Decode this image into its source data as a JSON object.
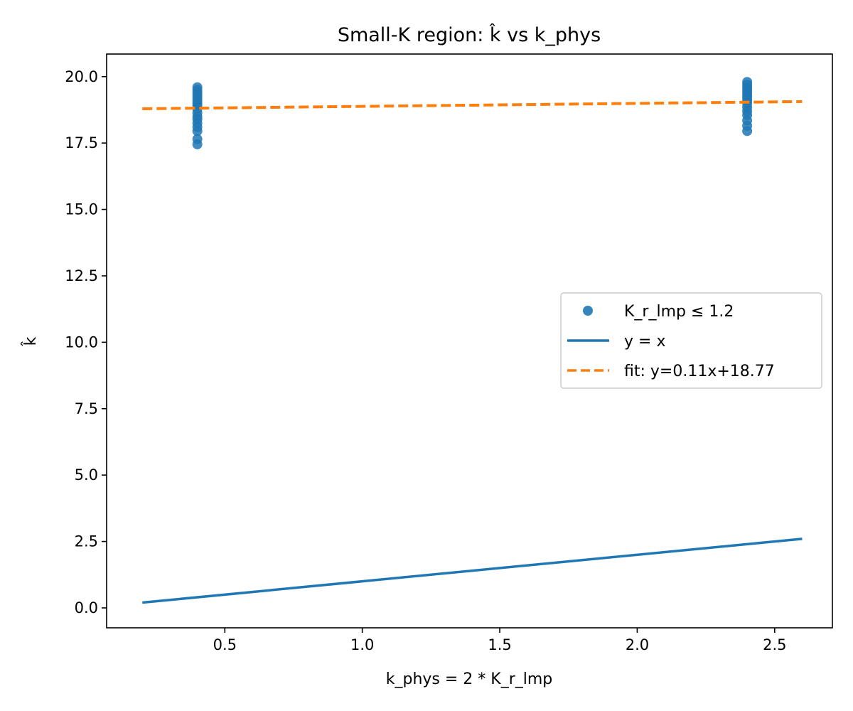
{
  "chart_data": {
    "type": "scatter",
    "title": "Small-K region: k̂ vs k_phys",
    "xlabel": "k_phys = 2 * K_r_lmp",
    "ylabel": "k̂",
    "xlim": [
      0.07,
      2.71
    ],
    "ylim": [
      -0.75,
      20.85
    ],
    "xticks": [
      0.5,
      1.0,
      1.5,
      2.0,
      2.5
    ],
    "yticks": [
      0.0,
      2.5,
      5.0,
      7.5,
      10.0,
      12.5,
      15.0,
      17.5,
      20.0
    ],
    "grid": false,
    "legend_position": "center-right",
    "series": [
      {
        "name": "K_r_lmp ≤ 1.2",
        "kind": "scatter",
        "color": "#1f77b4",
        "points": [
          {
            "x": 0.4,
            "y": 17.45
          },
          {
            "x": 0.4,
            "y": 17.65
          },
          {
            "x": 0.4,
            "y": 17.95
          },
          {
            "x": 0.4,
            "y": 18.1
          },
          {
            "x": 0.4,
            "y": 18.25
          },
          {
            "x": 0.4,
            "y": 18.4
          },
          {
            "x": 0.4,
            "y": 18.5
          },
          {
            "x": 0.4,
            "y": 18.65
          },
          {
            "x": 0.4,
            "y": 18.8
          },
          {
            "x": 0.4,
            "y": 18.9
          },
          {
            "x": 0.4,
            "y": 19.0
          },
          {
            "x": 0.4,
            "y": 19.1
          },
          {
            "x": 0.4,
            "y": 19.2
          },
          {
            "x": 0.4,
            "y": 19.3
          },
          {
            "x": 0.4,
            "y": 19.4
          },
          {
            "x": 0.4,
            "y": 19.5
          },
          {
            "x": 0.4,
            "y": 19.6
          },
          {
            "x": 2.4,
            "y": 17.95
          },
          {
            "x": 2.4,
            "y": 18.15
          },
          {
            "x": 2.4,
            "y": 18.35
          },
          {
            "x": 2.4,
            "y": 18.55
          },
          {
            "x": 2.4,
            "y": 18.7
          },
          {
            "x": 2.4,
            "y": 18.85
          },
          {
            "x": 2.4,
            "y": 19.0
          },
          {
            "x": 2.4,
            "y": 19.1
          },
          {
            "x": 2.4,
            "y": 19.2
          },
          {
            "x": 2.4,
            "y": 19.3
          },
          {
            "x": 2.4,
            "y": 19.4
          },
          {
            "x": 2.4,
            "y": 19.5
          },
          {
            "x": 2.4,
            "y": 19.6
          },
          {
            "x": 2.4,
            "y": 19.7
          },
          {
            "x": 2.4,
            "y": 19.8
          }
        ]
      },
      {
        "name": "y = x",
        "kind": "line",
        "style": "solid",
        "color": "#1f77b4",
        "x": [
          0.2,
          2.6
        ],
        "y": [
          0.2,
          2.6
        ]
      },
      {
        "name": "fit: y=0.11x+18.77",
        "kind": "line",
        "style": "dashed",
        "color": "#ff7f0e",
        "x": [
          0.2,
          2.6
        ],
        "y": [
          18.79,
          19.06
        ]
      }
    ]
  }
}
